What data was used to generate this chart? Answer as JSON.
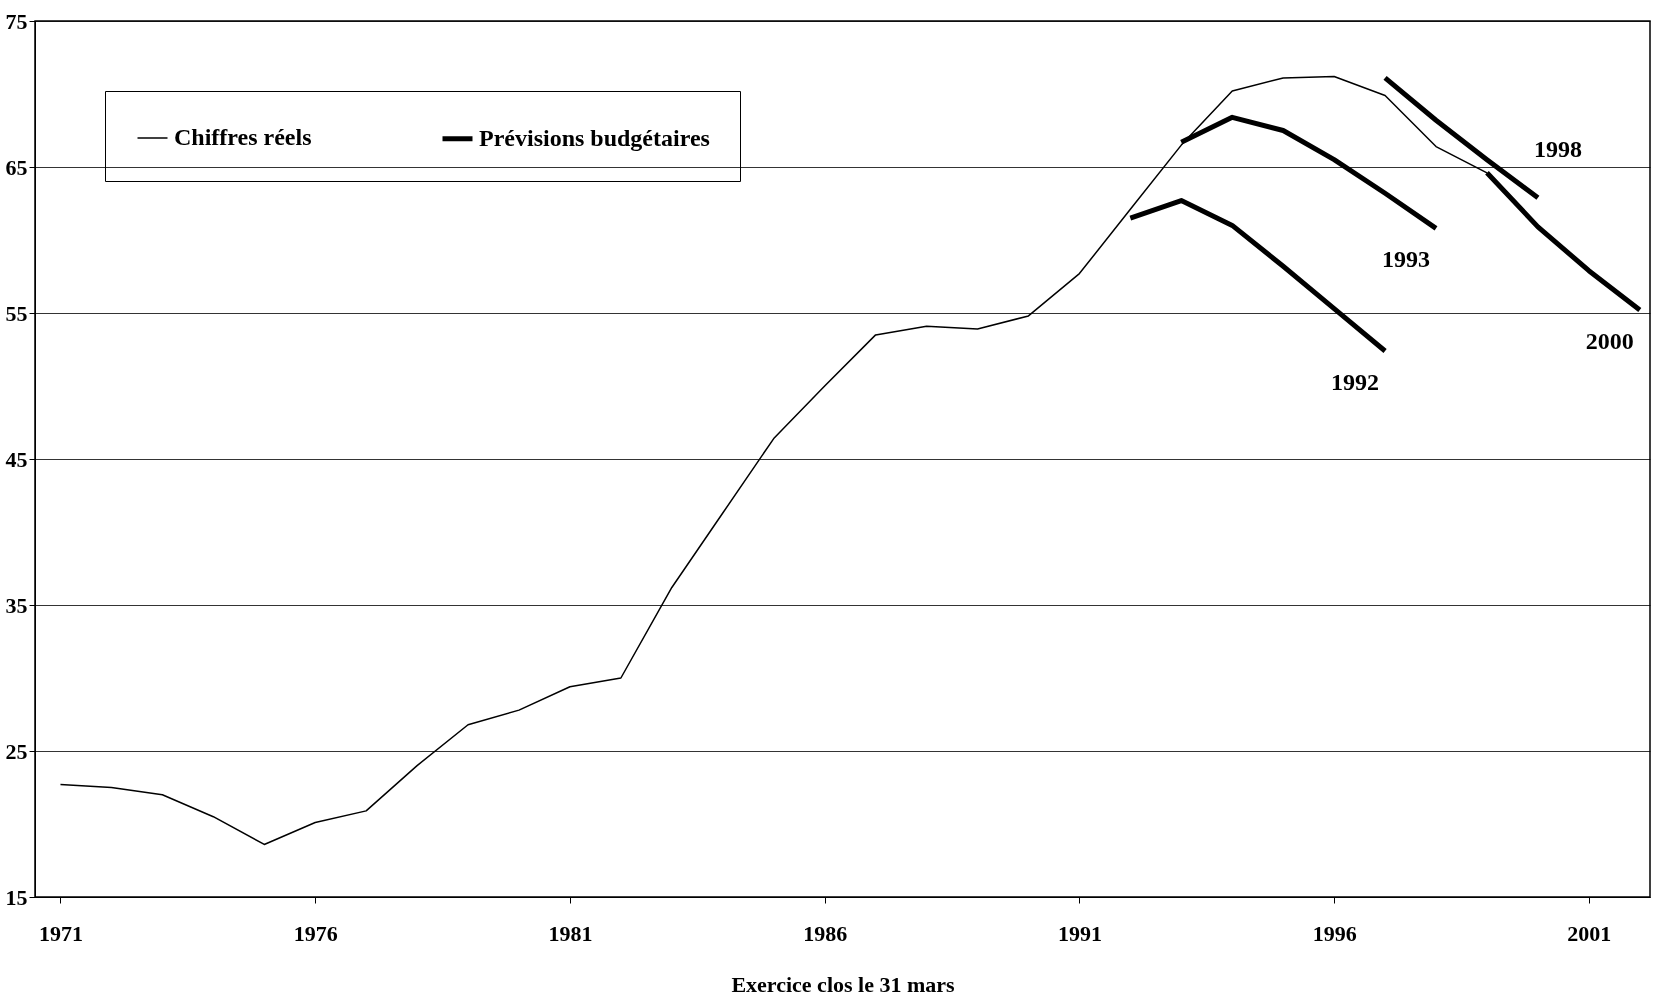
{
  "chart_data": {
    "type": "line",
    "xlabel": "Exercice clos le 31 mars",
    "xlim": [
      1970.5,
      2002.2
    ],
    "xticks": [
      1971,
      1976,
      1981,
      1986,
      1991,
      1996,
      2001
    ],
    "ylim": [
      15,
      75
    ],
    "yticks": [
      15,
      25,
      35,
      45,
      55,
      65,
      75
    ],
    "grid": "y",
    "legend": "top left",
    "marker": "none",
    "line_style": "solid",
    "series": [
      {
        "name": "Chiffres réels",
        "color": "#000000",
        "x": [
          1971,
          1972,
          1973,
          1974,
          1975,
          1976,
          1977,
          1978,
          1979,
          1980,
          1981,
          1982,
          1983,
          1984,
          1985,
          1986,
          1987,
          1988,
          1989,
          1990,
          1991,
          1992,
          1993,
          1994,
          1995,
          1996,
          1997,
          1998,
          1999
        ],
        "values": [
          22.7,
          22.5,
          22.0,
          20.5,
          18.6,
          20.1,
          20.9,
          24.0,
          26.8,
          27.8,
          29.4,
          30.0,
          36.2,
          41.3,
          46.4,
          50.0,
          53.5,
          54.1,
          53.9,
          54.8,
          57.7,
          62.1,
          66.5,
          70.2,
          71.1,
          71.2,
          69.9,
          66.4,
          64.6
        ]
      },
      {
        "name": "Prévisions budgétaires",
        "color": "#000000",
        "x": [
          1992,
          1993,
          1994,
          1995,
          1996,
          1997
        ],
        "values": [
          61.5,
          62.7,
          61.0,
          58.2,
          55.3,
          52.4
        ]
      },
      {
        "color": "#000000",
        "x": [
          1993,
          1994,
          1995,
          1996,
          1997,
          1998
        ],
        "values": [
          66.7,
          68.4,
          67.5,
          65.5,
          63.2,
          60.8
        ]
      },
      {
        "color": "#000000",
        "x": [
          1997,
          1998,
          1999,
          2000
        ],
        "values": [
          71.1,
          68.2,
          65.5,
          62.9
        ]
      },
      {
        "color": "#000000",
        "x": [
          1999,
          2000,
          2001,
          2002
        ],
        "values": [
          64.6,
          60.9,
          57.9,
          55.2
        ]
      }
    ],
    "annotations": [
      "1992",
      "1993",
      "1998",
      "2000"
    ]
  }
}
